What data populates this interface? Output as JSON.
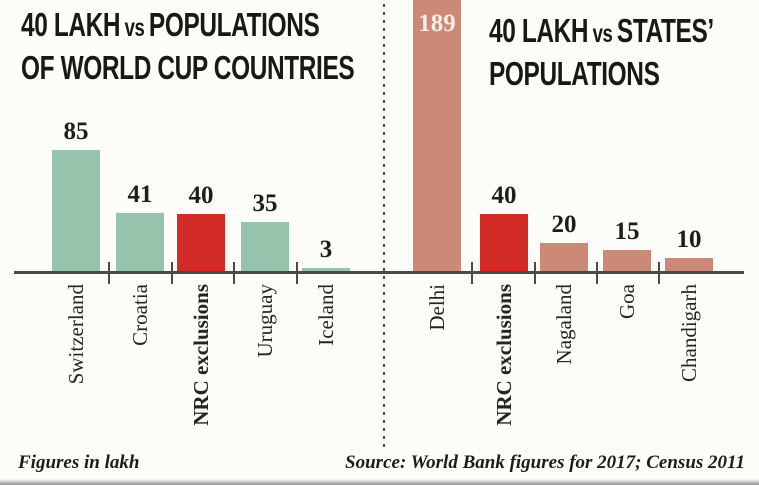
{
  "titles": {
    "left": {
      "l1a": "40 LAKH",
      "l1vs": "vs",
      "l1b": "POPULATIONS",
      "l2": "OF WORLD CUP COUNTRIES"
    },
    "right": {
      "l1a": "40 LAKH",
      "l1vs": "vs",
      "l1b": "STATES’",
      "l2": "POPULATIONS"
    }
  },
  "footer": {
    "note": "Figures in lakh",
    "source": "Source: World Bank figures for 2017; Census 2011"
  },
  "palette": {
    "teal": "#95c3ab",
    "salmon": "#cc8a76",
    "red": "#d32c26",
    "axis": "#4a4a48",
    "text": "#1f1d1a",
    "inside_label": "#f7ece6"
  },
  "chart_data": [
    {
      "type": "bar",
      "title": "40 LAKH vs POPULATIONS OF WORLD CUP COUNTRIES",
      "unit": "lakh",
      "categories": [
        "Switzerland",
        "Croatia",
        "NRC exclusions",
        "Uruguay",
        "Iceland"
      ],
      "values": [
        85,
        41,
        40,
        35,
        3
      ],
      "colors": [
        "teal",
        "teal",
        "red",
        "teal",
        "teal"
      ],
      "emphasized": [
        "NRC exclusions"
      ],
      "legend": "none",
      "grid": "off"
    },
    {
      "type": "bar",
      "title": "40 LAKH vs STATES’ POPULATIONS",
      "unit": "lakh",
      "categories": [
        "Delhi",
        "NRC exclusions",
        "Nagaland",
        "Goa",
        "Chandigarh"
      ],
      "values": [
        189,
        40,
        20,
        15,
        10
      ],
      "colors": [
        "salmon",
        "red",
        "salmon",
        "salmon",
        "salmon"
      ],
      "emphasized": [
        "NRC exclusions"
      ],
      "legend": "none",
      "grid": "off"
    }
  ]
}
